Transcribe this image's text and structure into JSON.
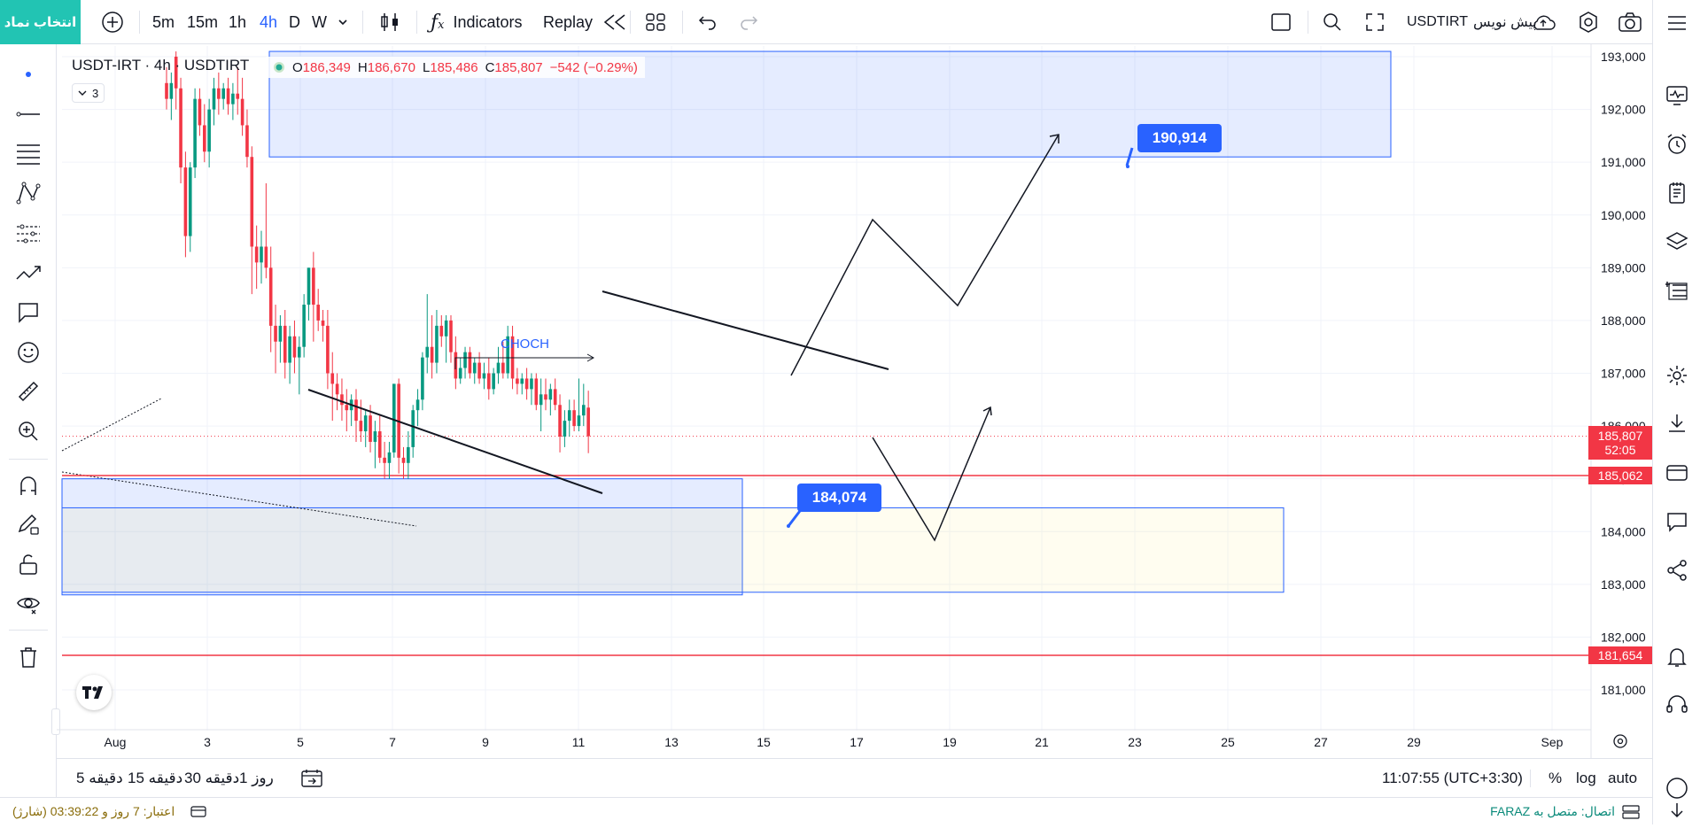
{
  "top": {
    "select_symbol": "انتخاب نماد",
    "intervals": [
      "5m",
      "15m",
      "1h",
      "4h",
      "D",
      "W"
    ],
    "active_interval": "4h",
    "indicators": "Indicators",
    "replay": "Replay",
    "publish": "پیش نویس",
    "symbol_right": "USDTIRT"
  },
  "legend": {
    "title": "USDT-IRT · 4h · USDTIRT",
    "count": "3",
    "o_label": "O",
    "o": "186,349",
    "h_label": "H",
    "h": "186,670",
    "l_label": "L",
    "l": "185,486",
    "c_label": "C",
    "c": "185,807",
    "change": "−542 (−0.29%)"
  },
  "chart_data": {
    "type": "candlestick",
    "symbol": "USDTIRT",
    "interval": "4h",
    "ylim": [
      180500,
      193200
    ],
    "y_ticks": [
      "193,000",
      "192,000",
      "191,000",
      "190,000",
      "189,000",
      "188,000",
      "187,000",
      "186,000",
      "185,000",
      "184,000",
      "183,000",
      "182,000",
      "181,000"
    ],
    "x_ticks": [
      "Aug",
      "3",
      "5",
      "7",
      "9",
      "11",
      "13",
      "15",
      "17",
      "19",
      "21",
      "23",
      "25",
      "27",
      "29",
      "Sep"
    ],
    "last_price": "185,807",
    "countdown": "52:05",
    "levels": [
      {
        "label": "185,062",
        "value": 185062,
        "color": "#f23645"
      },
      {
        "label": "181,654",
        "value": 181654,
        "color": "#f23645"
      }
    ],
    "annotations": {
      "choch": "CHOCH",
      "target_high": "190,914",
      "target_low": "184,074"
    },
    "candles": [
      [
        1,
        192500,
        192800,
        192000,
        192200
      ],
      [
        2,
        192200,
        192700,
        191800,
        192500
      ],
      [
        3,
        193000,
        193100,
        192000,
        192400
      ],
      [
        4,
        192400,
        192600,
        190600,
        190900
      ],
      [
        5,
        190900,
        191200,
        189200,
        189600
      ],
      [
        6,
        189600,
        191000,
        189300,
        190900
      ],
      [
        7,
        190900,
        192400,
        190700,
        192200
      ],
      [
        8,
        192200,
        192400,
        191500,
        191700
      ],
      [
        9,
        191700,
        192100,
        191000,
        191200
      ],
      [
        10,
        191200,
        192200,
        190900,
        192000
      ],
      [
        11,
        192000,
        192600,
        191700,
        192400
      ],
      [
        12,
        192400,
        192700,
        191900,
        192200
      ],
      [
        13,
        192200,
        192500,
        192000,
        192400
      ],
      [
        14,
        192400,
        192600,
        191900,
        192100
      ],
      [
        15,
        192100,
        192500,
        191800,
        192300
      ],
      [
        16,
        192300,
        192800,
        191900,
        192200
      ],
      [
        17,
        192200,
        192600,
        191500,
        191700
      ],
      [
        18,
        191700,
        192000,
        190900,
        191100
      ],
      [
        19,
        191100,
        191300,
        188500,
        189400
      ],
      [
        20,
        189400,
        189800,
        188600,
        189100
      ],
      [
        21,
        189100,
        189700,
        188700,
        189400
      ],
      [
        22,
        189400,
        190600,
        188800,
        189000
      ],
      [
        23,
        189000,
        189400,
        187400,
        187900
      ],
      [
        24,
        187900,
        188300,
        187000,
        187600
      ],
      [
        25,
        187600,
        188100,
        187200,
        187900
      ],
      [
        26,
        187900,
        188200,
        186900,
        187200
      ],
      [
        27,
        187200,
        187900,
        186800,
        187700
      ],
      [
        28,
        187700,
        188000,
        187000,
        187300
      ],
      [
        29,
        187300,
        187700,
        186600,
        187500
      ],
      [
        30,
        187500,
        188500,
        187300,
        188300
      ],
      [
        31,
        188300,
        189000,
        188000,
        189000
      ],
      [
        32,
        189000,
        189300,
        187600,
        188300
      ],
      [
        33,
        188300,
        188600,
        187800,
        188000
      ],
      [
        34,
        188000,
        188200,
        187600,
        187900
      ],
      [
        35,
        187900,
        188200,
        186700,
        187000
      ],
      [
        36,
        187000,
        187400,
        186100,
        186800
      ],
      [
        37,
        186800,
        187000,
        186300,
        186600
      ],
      [
        38,
        186600,
        186900,
        186100,
        186400
      ],
      [
        39,
        186400,
        186700,
        185900,
        186300
      ],
      [
        40,
        186300,
        186600,
        186000,
        186500
      ],
      [
        41,
        186500,
        186700,
        185700,
        186100
      ],
      [
        42,
        186100,
        186500,
        185700,
        185900
      ],
      [
        43,
        185900,
        186300,
        185600,
        186200
      ],
      [
        44,
        186200,
        186400,
        185500,
        185700
      ],
      [
        45,
        185700,
        186100,
        185200,
        185900
      ],
      [
        46,
        185900,
        186200,
        185300,
        185400
      ],
      [
        47,
        185400,
        185700,
        185000,
        185300
      ],
      [
        48,
        185300,
        185700,
        185000,
        185500
      ],
      [
        49,
        185500,
        186800,
        185400,
        186800
      ],
      [
        50,
        186800,
        186900,
        185100,
        185400
      ],
      [
        51,
        185400,
        185600,
        185000,
        185300
      ],
      [
        52,
        185300,
        185900,
        185000,
        185600
      ],
      [
        53,
        185600,
        186400,
        185400,
        186300
      ],
      [
        54,
        186300,
        186700,
        186000,
        186500
      ],
      [
        55,
        186500,
        187400,
        186300,
        187300
      ],
      [
        56,
        187300,
        188500,
        187000,
        187500
      ],
      [
        57,
        187500,
        188100,
        186900,
        187200
      ],
      [
        58,
        187200,
        188200,
        187000,
        187900
      ],
      [
        59,
        187900,
        188100,
        187500,
        187700
      ],
      [
        60,
        187700,
        188100,
        187200,
        188000
      ],
      [
        61,
        188000,
        188100,
        187200,
        187400
      ],
      [
        62,
        187400,
        187700,
        186700,
        186900
      ],
      [
        63,
        186900,
        187300,
        186800,
        187100
      ],
      [
        64,
        187100,
        187500,
        186900,
        187400
      ],
      [
        65,
        187400,
        187500,
        186900,
        187000
      ],
      [
        66,
        187000,
        187300,
        186800,
        187200
      ],
      [
        67,
        187200,
        187400,
        186800,
        186900
      ],
      [
        68,
        186900,
        187200,
        186700,
        187000
      ],
      [
        69,
        187000,
        187300,
        186500,
        186700
      ],
      [
        70,
        186700,
        187100,
        186600,
        187000
      ],
      [
        71,
        187000,
        187500,
        186800,
        187200
      ],
      [
        72,
        187200,
        187600,
        186900,
        187000
      ],
      [
        73,
        187000,
        187900,
        186900,
        187700
      ],
      [
        74,
        187700,
        187900,
        186700,
        186900
      ],
      [
        75,
        186900,
        187100,
        186600,
        186800
      ],
      [
        76,
        186800,
        187000,
        186600,
        186900
      ],
      [
        77,
        186900,
        187100,
        186500,
        186700
      ],
      [
        78,
        186700,
        187000,
        186400,
        186900
      ],
      [
        79,
        186900,
        187000,
        186300,
        186400
      ],
      [
        80,
        186400,
        186900,
        185900,
        186600
      ],
      [
        81,
        186600,
        186900,
        186300,
        186500
      ],
      [
        82,
        186500,
        186800,
        186200,
        186700
      ],
      [
        83,
        186700,
        186900,
        186300,
        186400
      ],
      [
        84,
        186400,
        186600,
        185500,
        185800
      ],
      [
        85,
        185800,
        186300,
        185600,
        186100
      ],
      [
        86,
        186100,
        186500,
        185800,
        186300
      ],
      [
        87,
        186300,
        186500,
        185900,
        186000
      ],
      [
        88,
        186000,
        186900,
        185900,
        186200
      ],
      [
        89,
        186200,
        186800,
        186000,
        186400
      ],
      [
        90,
        186349,
        186670,
        185486,
        185807
      ]
    ]
  },
  "bottom": {
    "ranges": [
      "5 دقیقه",
      "15 دقیقه",
      "30 دقیقه",
      "1 روز"
    ],
    "time": "11:07:55 (UTC+3:30)",
    "percent": "%",
    "log": "log",
    "auto": "auto"
  },
  "status": {
    "left": "اعتبار: 7 روز و 03:39:22 (شارژ)",
    "right": "اتصال: متصل به FARAZ"
  }
}
